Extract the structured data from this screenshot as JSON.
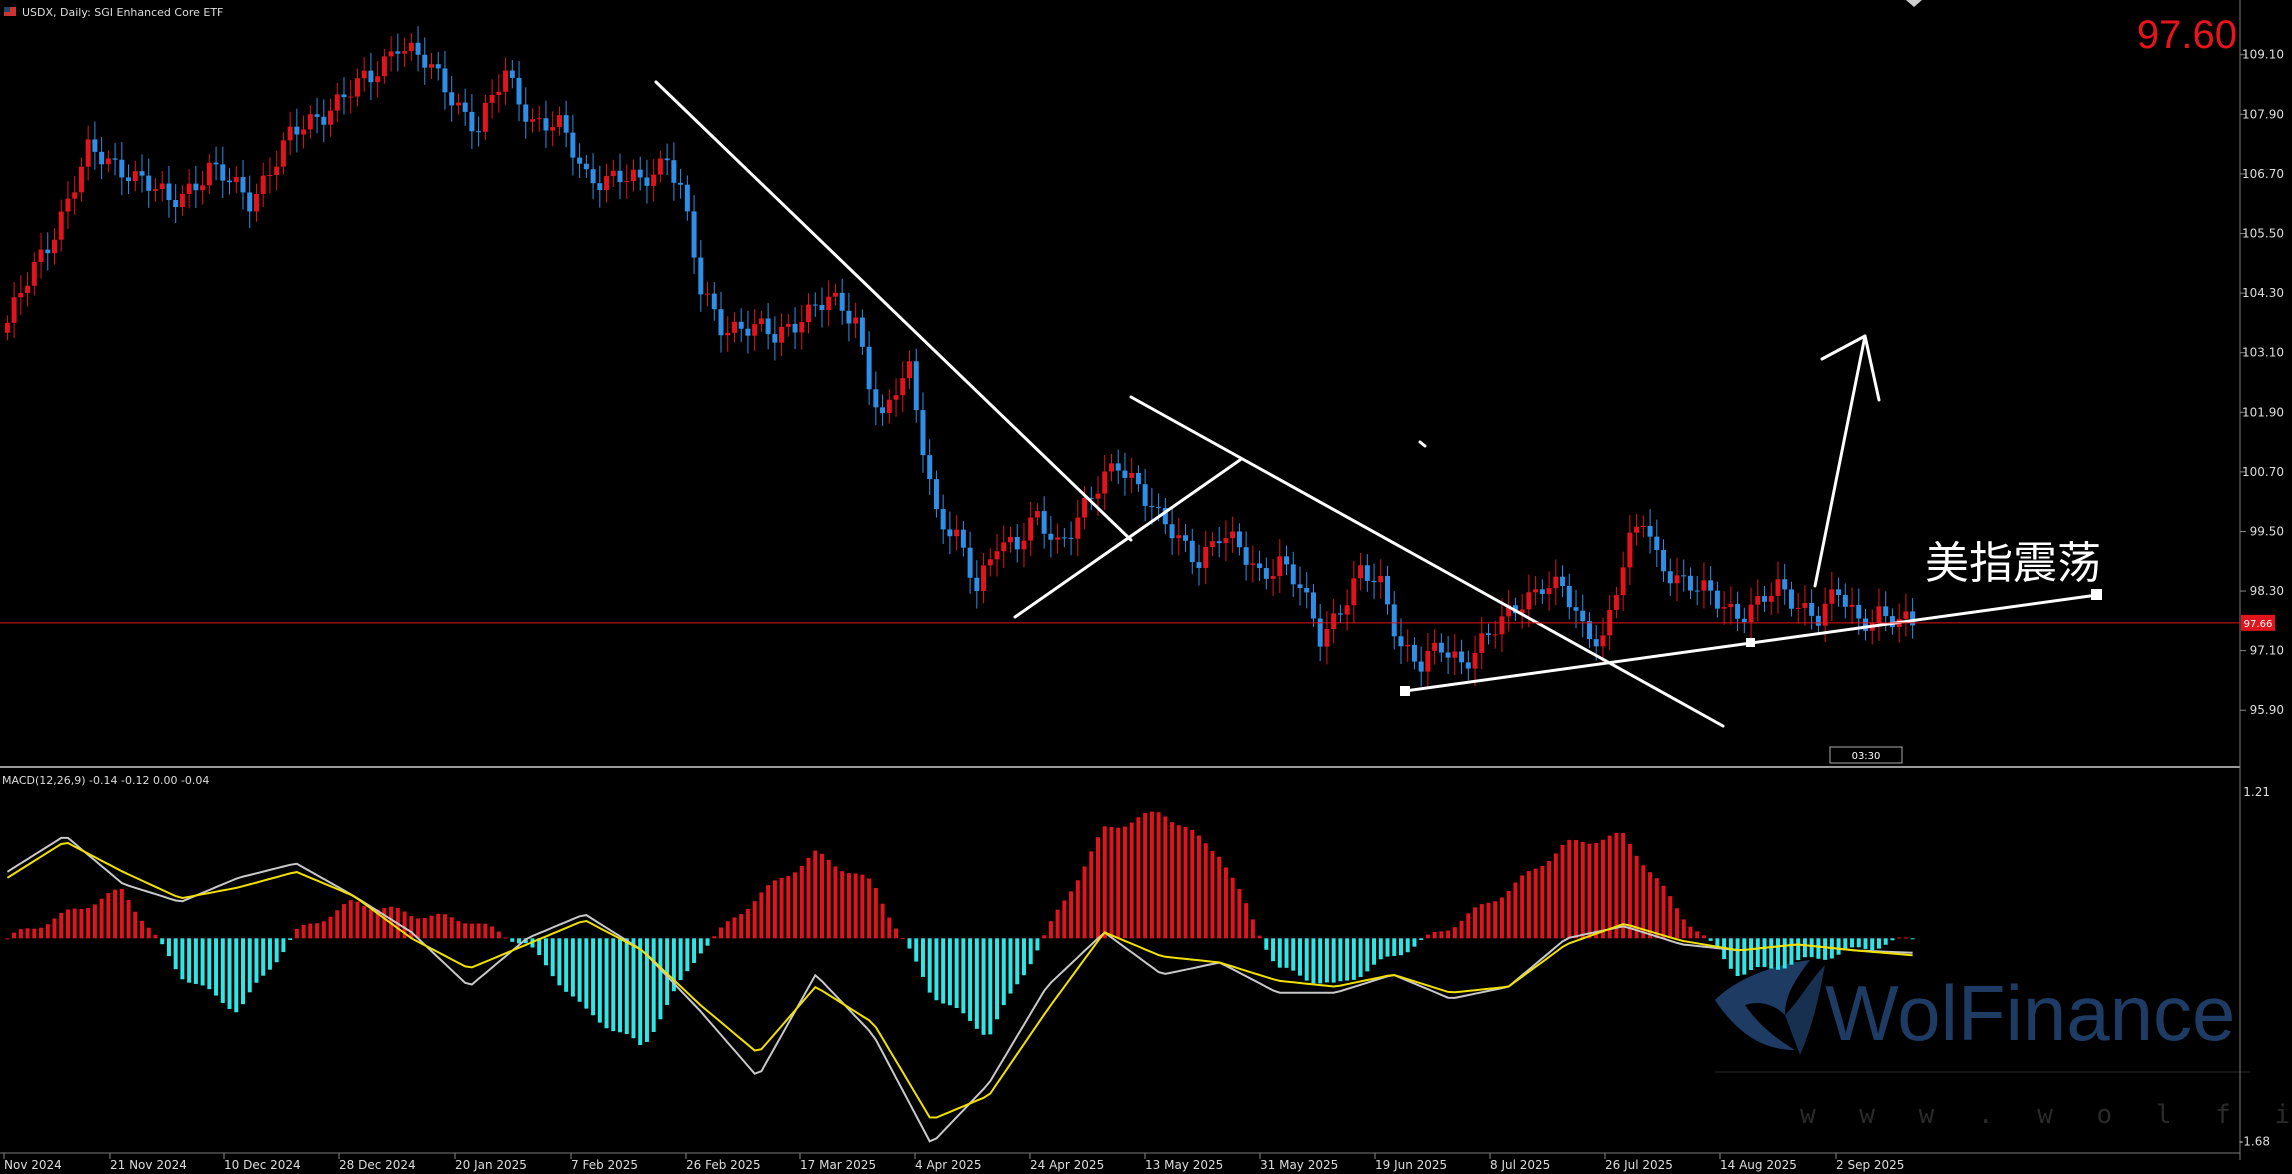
{
  "header": {
    "symbol_label": "USDX, Daily:  SGI Enhanced Core ETF",
    "current_price": "97.60",
    "price_marker": "97.66",
    "countdown": "03:30"
  },
  "annotation": {
    "text": "美指震荡"
  },
  "watermark": {
    "brand": "WolFinance",
    "url": "w w w . w o l f i n a n c e . c o m"
  },
  "colors": {
    "background": "#000000",
    "bull": "#e0141c",
    "bear": "#2f8fe6",
    "macd_pos": "#e0141c",
    "macd_neg": "#2ee6e6",
    "macd_line": "#c8c8c8",
    "signal_line": "#f0e100",
    "trendline": "#ffffff",
    "price_line": "#e0141c",
    "big_price": "#e8141c"
  },
  "chart_data": [
    {
      "type": "candlestick",
      "title": "USDX, Daily:  SGI Enhanced Core ETF",
      "y_ticks": [
        "109.10",
        "107.90",
        "106.70",
        "105.50",
        "104.30",
        "103.10",
        "101.90",
        "100.70",
        "99.50",
        "98.30",
        "97.10",
        "95.90"
      ],
      "ylim": [
        95.2,
        109.9
      ],
      "x_ticks": [
        "Nov 2024",
        "21 Nov 2024",
        "10 Dec 2024",
        "28 Dec 2024",
        "20 Jan 2025",
        "7 Feb 2025",
        "26 Feb 2025",
        "17 Mar 2025",
        "4 Apr 2025",
        "24 Apr 2025",
        "13 May 2025",
        "31 May 2025",
        "19 Jun 2025",
        "8 Jul 2025",
        "26 Jul 2025",
        "14 Aug 2025",
        "2 Sep 2025"
      ],
      "close_anchors": [
        [
          0,
          103.7
        ],
        [
          6,
          105.3
        ],
        [
          12,
          107.1
        ],
        [
          18,
          106.8
        ],
        [
          24,
          106.1
        ],
        [
          30,
          106.8
        ],
        [
          36,
          106.2
        ],
        [
          42,
          107.4
        ],
        [
          48,
          108.1
        ],
        [
          54,
          108.6
        ],
        [
          58,
          109.4
        ],
        [
          62,
          108.9
        ],
        [
          66,
          108.3
        ],
        [
          70,
          107.6
        ],
        [
          74,
          108.7
        ],
        [
          78,
          107.8
        ],
        [
          82,
          107.6
        ],
        [
          86,
          106.7
        ],
        [
          90,
          106.6
        ],
        [
          94,
          106.5
        ],
        [
          98,
          107.1
        ],
        [
          100,
          106.4
        ],
        [
          103,
          104.3
        ],
        [
          106,
          103.7
        ],
        [
          110,
          103.6
        ],
        [
          114,
          103.4
        ],
        [
          118,
          103.9
        ],
        [
          122,
          104.1
        ],
        [
          126,
          103.8
        ],
        [
          128,
          102.6
        ],
        [
          130,
          101.7
        ],
        [
          132,
          102.3
        ],
        [
          134,
          102.7
        ],
        [
          136,
          101.3
        ],
        [
          138,
          99.9
        ],
        [
          141,
          99.3
        ],
        [
          144,
          98.3
        ],
        [
          147,
          99.4
        ],
        [
          150,
          99.2
        ],
        [
          153,
          99.7
        ],
        [
          156,
          99.3
        ],
        [
          159,
          99.8
        ],
        [
          162,
          100.3
        ],
        [
          165,
          100.9
        ],
        [
          168,
          100.5
        ],
        [
          171,
          99.7
        ],
        [
          174,
          99.3
        ],
        [
          177,
          99.0
        ],
        [
          180,
          99.4
        ],
        [
          183,
          99.1
        ],
        [
          186,
          98.7
        ],
        [
          189,
          98.9
        ],
        [
          192,
          98.3
        ],
        [
          195,
          97.4
        ],
        [
          198,
          98.0
        ],
        [
          201,
          98.6
        ],
        [
          204,
          98.4
        ],
        [
          207,
          97.3
        ],
        [
          210,
          96.8
        ],
        [
          213,
          97.1
        ],
        [
          216,
          96.9
        ],
        [
          219,
          97.3
        ],
        [
          222,
          97.6
        ],
        [
          225,
          98.1
        ],
        [
          228,
          98.5
        ],
        [
          231,
          98.3
        ],
        [
          234,
          97.5
        ],
        [
          237,
          97.4
        ],
        [
          239,
          98.4
        ],
        [
          241,
          99.2
        ],
        [
          243,
          99.7
        ],
        [
          245,
          99.0
        ],
        [
          248,
          98.6
        ],
        [
          251,
          98.3
        ],
        [
          254,
          98.1
        ],
        [
          257,
          97.9
        ],
        [
          260,
          98.0
        ],
        [
          263,
          98.3
        ],
        [
          266,
          98.1
        ],
        [
          269,
          97.8
        ],
        [
          272,
          98.2
        ],
        [
          275,
          97.7
        ],
        [
          278,
          97.9
        ],
        [
          281,
          97.6
        ],
        [
          283,
          97.6
        ]
      ],
      "last_price": 97.66
    },
    {
      "type": "bar+line",
      "title": "MACD(12,26,9) -0.14 -0.12 0.00 -0.04",
      "y_ticks": [
        "1.21",
        "-1.68"
      ],
      "ylim": [
        -1.75,
        1.35
      ],
      "series": [
        {
          "name": "MACD",
          "values": [
            0.55,
            0.85,
            0.45,
            0.3,
            0.5,
            0.62,
            0.35,
            0.05,
            -0.4,
            0.0,
            0.2,
            -0.1,
            -0.6,
            -1.15,
            -0.3,
            -0.8,
            -1.7,
            -1.2,
            -0.4,
            0.05,
            -0.3,
            -0.2,
            -0.45,
            -0.45,
            -0.3,
            -0.5,
            -0.4,
            0.0,
            0.1,
            -0.05,
            -0.1,
            -0.05,
            -0.1,
            -0.12
          ]
        },
        {
          "name": "Signal",
          "values": [
            0.5,
            0.8,
            0.55,
            0.33,
            0.42,
            0.55,
            0.35,
            0.0,
            -0.25,
            -0.05,
            0.15,
            -0.1,
            -0.55,
            -0.95,
            -0.4,
            -0.7,
            -1.5,
            -1.3,
            -0.6,
            0.05,
            -0.15,
            -0.2,
            -0.35,
            -0.4,
            -0.3,
            -0.45,
            -0.4,
            -0.05,
            0.12,
            -0.02,
            -0.1,
            -0.05,
            -0.1,
            -0.14
          ]
        },
        {
          "name": "Histogram",
          "values": [
            0.0,
            0.2,
            0.4,
            -0.3,
            -0.6,
            0.05,
            0.3,
            0.2,
            0.15,
            -0.05,
            -0.6,
            -0.9,
            -0.1,
            0.35,
            0.7,
            0.45,
            -0.45,
            -0.8,
            0.05,
            0.9,
            1.05,
            0.7,
            -0.25,
            -0.4,
            -0.15,
            0.1,
            0.4,
            0.78,
            0.85,
            0.2,
            -0.3,
            -0.2,
            -0.1,
            0.0
          ]
        }
      ]
    }
  ]
}
